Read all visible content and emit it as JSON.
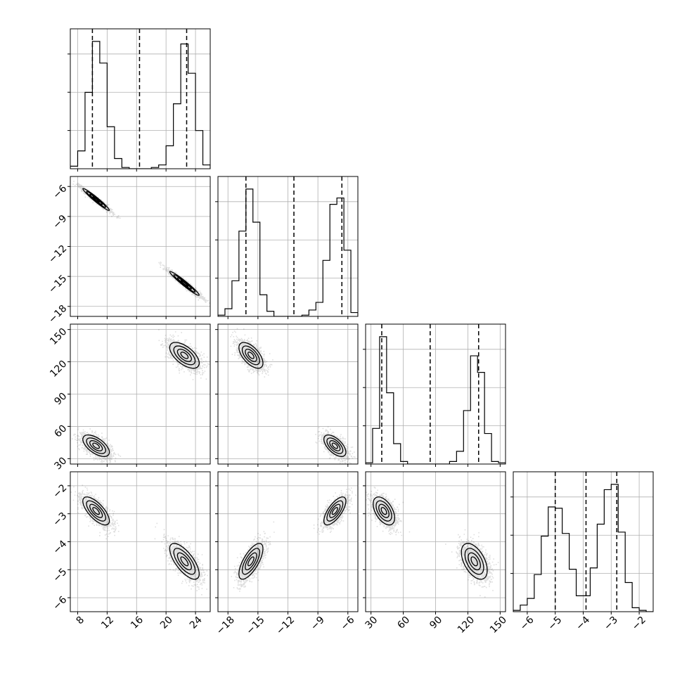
{
  "chart_data": {
    "type": "corner",
    "title": "",
    "grid": true,
    "parameters": [
      {
        "range": [
          7,
          26
        ],
        "ticks": [
          8,
          12,
          16,
          20,
          24
        ],
        "tick_labels": [
          "8",
          "12",
          "16",
          "20",
          "24"
        ],
        "quantiles": [
          10.0,
          16.4,
          22.8
        ],
        "hist_edges": [
          7,
          8,
          9,
          10,
          11,
          12,
          13,
          14,
          15,
          16,
          17,
          18,
          19,
          20,
          21,
          22,
          23,
          24,
          25,
          26
        ],
        "hist_counts": [
          0.02,
          0.14,
          0.6,
          1.0,
          0.83,
          0.33,
          0.08,
          0.01,
          0,
          0,
          0,
          0.01,
          0.03,
          0.18,
          0.51,
          0.98,
          0.75,
          0.3,
          0.03
        ]
      },
      {
        "range": [
          -19,
          -5
        ],
        "ticks": [
          -18,
          -15,
          -12,
          -9,
          -6
        ],
        "tick_labels": [
          "−18",
          "−15",
          "−12",
          "−9",
          "−6"
        ],
        "quantiles": [
          -16.2,
          -11.4,
          -6.6
        ],
        "hist_edges": [
          -19,
          -18.3,
          -17.6,
          -16.9,
          -16.2,
          -15.5,
          -14.8,
          -14.1,
          -13.4,
          -12.7,
          -12.0,
          -11.3,
          -10.6,
          -9.9,
          -9.2,
          -8.5,
          -7.8,
          -7.1,
          -6.4,
          -5.7,
          -5.0
        ],
        "hist_counts": [
          0.01,
          0.06,
          0.28,
          0.67,
          1.0,
          0.74,
          0.17,
          0.04,
          0,
          0,
          0,
          0,
          0.01,
          0.05,
          0.11,
          0.44,
          0.88,
          0.93,
          0.52,
          0.03
        ]
      },
      {
        "range": [
          25,
          155
        ],
        "ticks": [
          30,
          60,
          90,
          120,
          150
        ],
        "tick_labels": [
          "30",
          "60",
          "90",
          "120",
          "150"
        ],
        "quantiles": [
          40,
          85,
          130
        ],
        "hist_edges": [
          25,
          31.5,
          38,
          44.5,
          51,
          57.5,
          64,
          70.5,
          77,
          83.5,
          90,
          96.5,
          103,
          109.5,
          116,
          122.5,
          129,
          135.5,
          142,
          148.5,
          155
        ],
        "hist_counts": [
          0.01,
          0.28,
          1.0,
          0.56,
          0.16,
          0.02,
          0,
          0,
          0,
          0,
          0,
          0,
          0.02,
          0.1,
          0.42,
          0.85,
          0.72,
          0.24,
          0.02,
          0.01
        ]
      },
      {
        "range": [
          -6.5,
          -1.5
        ],
        "ticks": [
          -6,
          -5,
          -4,
          -3,
          -2
        ],
        "tick_labels": [
          "−6",
          "−5",
          "−4",
          "−3",
          "−2"
        ],
        "quantiles": [
          -5.0,
          -3.9,
          -2.8
        ],
        "hist_edges": [
          -6.5,
          -6.25,
          -6.0,
          -5.75,
          -5.5,
          -5.25,
          -5.0,
          -4.75,
          -4.5,
          -4.25,
          -4.0,
          -3.75,
          -3.5,
          -3.25,
          -3.0,
          -2.75,
          -2.5,
          -2.25,
          -2.0,
          -1.75,
          -1.5
        ],
        "hist_counts": [
          0.01,
          0.05,
          0.1,
          0.28,
          0.57,
          0.79,
          0.78,
          0.59,
          0.32,
          0.12,
          0.12,
          0.33,
          0.66,
          0.92,
          0.96,
          0.6,
          0.22,
          0.03,
          0.01,
          0
        ]
      }
    ],
    "modes": [
      {
        "mean": [
          10.5,
          -7.3,
          42,
          -2.9
        ],
        "sd": [
          0.9,
          0.55,
          5,
          0.25
        ]
      },
      {
        "mean": [
          22.5,
          -15.7,
          126,
          -4.7
        ],
        "sd": [
          1.0,
          0.6,
          6,
          0.32
        ]
      }
    ],
    "correlations": [
      [
        1,
        -0.97,
        -0.6,
        -0.7
      ],
      [
        -0.97,
        1,
        -0.6,
        0.7
      ],
      [
        -0.6,
        -0.6,
        1,
        -0.5
      ],
      [
        -0.7,
        0.7,
        -0.5,
        1
      ]
    ]
  }
}
